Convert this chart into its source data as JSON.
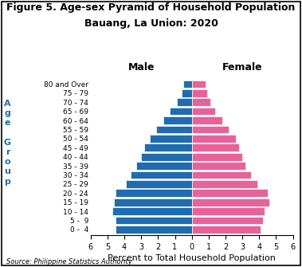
{
  "title_line1": "Figure 5. Age-sex Pyramid of Household Population",
  "title_line2": "Bauang, La Union: 2020",
  "source": "Source: Philippine Statistics Authority",
  "xlabel": "Percent to Total Household Population",
  "age_groups": [
    "0 -  4",
    "5 -  9",
    "10 - 14",
    "15 - 19",
    "20 - 24",
    "25 - 29",
    "30 - 34",
    "35 - 39",
    "40 - 44",
    "45 - 49",
    "50 - 54",
    "55 - 59",
    "60 - 64",
    "65 - 69",
    "70 - 74",
    "75 - 79",
    "80 and Over"
  ],
  "male": [
    4.5,
    4.5,
    4.7,
    4.6,
    4.5,
    3.9,
    3.6,
    3.3,
    3.0,
    2.8,
    2.5,
    2.1,
    1.7,
    1.3,
    0.9,
    0.6,
    0.5
  ],
  "female": [
    4.1,
    4.2,
    4.3,
    4.6,
    4.5,
    3.9,
    3.5,
    3.2,
    3.0,
    2.8,
    2.6,
    2.2,
    1.8,
    1.4,
    1.1,
    0.9,
    0.8
  ],
  "male_color": "#1F6CB0",
  "female_color": "#E8629A",
  "male_label": "Male",
  "female_label": "Female",
  "age_label_letters": [
    "A",
    "g",
    "e",
    "",
    "G",
    "r",
    "o",
    "u",
    "p"
  ],
  "xlim": 6,
  "background_color": "#ffffff",
  "title_fontsize": 9,
  "tick_fontsize": 7,
  "label_fontsize": 8,
  "age_tick_fontsize": 6.5,
  "bar_height": 0.85
}
